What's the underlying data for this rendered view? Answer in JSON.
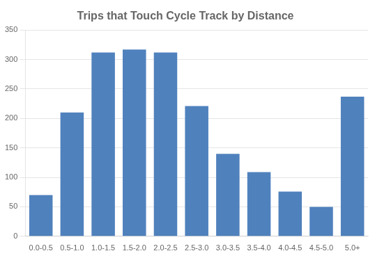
{
  "chart_data": {
    "type": "bar",
    "title": "Trips that Touch Cycle Track by Distance",
    "categories": [
      "0.0-0.5",
      "0.5-1.0",
      "1.0-1.5",
      "1.5-2.0",
      "2.0-2.5",
      "2.5-3.0",
      "3.0-3.5",
      "3.5-4.0",
      "4.0-4.5",
      "4.5-5.0",
      "5.0+"
    ],
    "values": [
      70,
      210,
      312,
      317,
      312,
      221,
      140,
      109,
      76,
      50,
      237
    ],
    "color": "#4f81bd",
    "ylim": [
      0,
      350
    ],
    "yticks": [
      0,
      50,
      100,
      150,
      200,
      250,
      300,
      350
    ],
    "grid": true
  }
}
